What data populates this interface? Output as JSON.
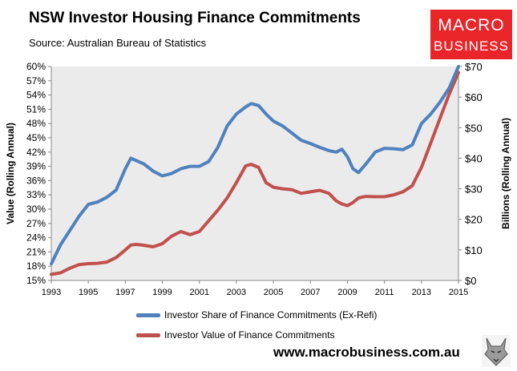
{
  "title": "NSW Investor Housing Finance Commitments",
  "subtitle": "Source: Australian Bureau of Statistics",
  "logo": {
    "line1": "MACRO",
    "line2": "BUSINESS"
  },
  "website": "www.macrobusiness.com.au",
  "colors": {
    "share": "#4f81bd",
    "value": "#c0504d",
    "logo_bg": "#e8262a",
    "plot_bg": "#ebebeb"
  },
  "chart_data": {
    "type": "line",
    "ylabel_left": "Value (Rolling Annual)",
    "ylabel_right": "Billions (Rolling Annual)",
    "x_ticks": [
      "1993",
      "1995",
      "1997",
      "1999",
      "2001",
      "2003",
      "2005",
      "2007",
      "2009",
      "2011",
      "2013",
      "2015"
    ],
    "xlim": [
      1993,
      2015
    ],
    "y_left_ticks": [
      "15%",
      "18%",
      "21%",
      "24%",
      "27%",
      "30%",
      "33%",
      "36%",
      "39%",
      "42%",
      "45%",
      "48%",
      "51%",
      "54%",
      "57%",
      "60%"
    ],
    "y_left_lim": [
      15,
      60
    ],
    "y_right_ticks": [
      "$0",
      "$10",
      "$20",
      "$30",
      "$40",
      "$50",
      "$60",
      "$70"
    ],
    "y_right_lim": [
      0,
      70
    ],
    "grid": false,
    "series": [
      {
        "name": "Investor Share of Finance Commitments (Ex-Refi)",
        "axis": "left",
        "x": [
          1993.0,
          1993.5,
          1994.0,
          1994.5,
          1995.0,
          1995.5,
          1996.0,
          1996.5,
          1997.0,
          1997.3,
          1997.6,
          1998.0,
          1998.5,
          1999.0,
          1999.5,
          2000.0,
          2000.5,
          2001.0,
          2001.5,
          2002.0,
          2002.5,
          2003.0,
          2003.5,
          2003.8,
          2004.2,
          2004.6,
          2005.0,
          2005.5,
          2006.0,
          2006.5,
          2007.0,
          2007.5,
          2008.0,
          2008.4,
          2008.7,
          2009.0,
          2009.3,
          2009.6,
          2010.0,
          2010.5,
          2011.0,
          2011.5,
          2012.0,
          2012.5,
          2013.0,
          2013.5,
          2014.0,
          2014.5,
          2015.0
        ],
        "y": [
          18.5,
          22.5,
          25.5,
          28.5,
          31.0,
          31.5,
          32.5,
          34.0,
          38.5,
          40.7,
          40.2,
          39.5,
          38.0,
          37.0,
          37.5,
          38.5,
          39.0,
          39.0,
          40.0,
          43.0,
          47.5,
          50.0,
          51.5,
          52.2,
          51.8,
          50.0,
          48.5,
          47.5,
          46.0,
          44.5,
          43.8,
          43.0,
          42.3,
          42.0,
          42.6,
          41.0,
          38.5,
          37.7,
          39.5,
          42.0,
          42.8,
          42.7,
          42.5,
          43.5,
          48.0,
          50.0,
          52.5,
          55.5,
          60.0
        ]
      },
      {
        "name": "Investor Value of Finance Commitments",
        "axis": "right",
        "x": [
          1993.0,
          1993.5,
          1994.0,
          1994.5,
          1995.0,
          1995.5,
          1996.0,
          1996.5,
          1997.0,
          1997.3,
          1997.6,
          1998.0,
          1998.5,
          1999.0,
          1999.5,
          2000.0,
          2000.5,
          2001.0,
          2001.5,
          2002.0,
          2002.5,
          2003.0,
          2003.5,
          2003.8,
          2004.2,
          2004.6,
          2005.0,
          2005.5,
          2006.0,
          2006.5,
          2007.0,
          2007.5,
          2008.0,
          2008.4,
          2008.7,
          2009.0,
          2009.3,
          2009.6,
          2010.0,
          2010.5,
          2011.0,
          2011.5,
          2012.0,
          2012.5,
          2013.0,
          2013.5,
          2014.0,
          2014.5,
          2015.0
        ],
        "y": [
          2.0,
          2.5,
          4.0,
          5.2,
          5.5,
          5.6,
          6.0,
          7.5,
          10.0,
          11.6,
          11.8,
          11.5,
          11.0,
          12.0,
          14.5,
          16.0,
          15.0,
          16.0,
          19.5,
          23.0,
          27.0,
          32.0,
          37.5,
          38.0,
          37.0,
          32.0,
          30.5,
          30.0,
          29.7,
          28.5,
          29.0,
          29.5,
          28.5,
          26.0,
          25.0,
          24.5,
          25.5,
          27.0,
          27.5,
          27.4,
          27.4,
          28.0,
          29.0,
          31.0,
          37.0,
          45.0,
          53.0,
          61.0,
          68.0
        ]
      }
    ]
  }
}
